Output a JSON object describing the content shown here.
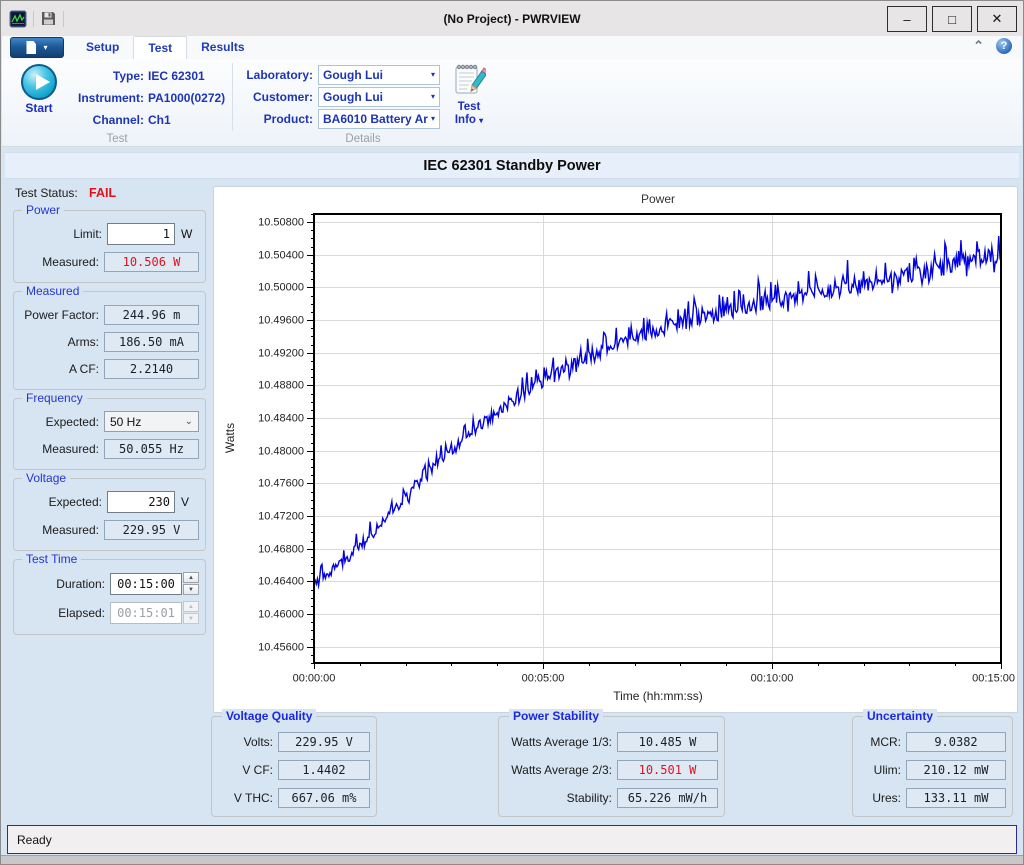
{
  "titlebar": {
    "title": "(No Project) - PWRVIEW"
  },
  "icons": {
    "minimize": "–",
    "maximize": "□",
    "close": "✕",
    "caret_down": "▾",
    "select_chevron": "⌄",
    "spin_up": "▲",
    "spin_down": "▼",
    "chevron_up": "⌃",
    "help": "?"
  },
  "ribbon": {
    "tabs": [
      {
        "label": "Setup",
        "active": false
      },
      {
        "label": "Test",
        "active": true
      },
      {
        "label": "Results",
        "active": false
      }
    ],
    "test_group": {
      "caption": "Test",
      "start_label": "Start",
      "fields": [
        {
          "label": "Type:",
          "value": "IEC 62301"
        },
        {
          "label": "Instrument:",
          "value": "PA1000(0272)"
        },
        {
          "label": "Channel:",
          "value": "Ch1"
        }
      ]
    },
    "details_group": {
      "caption": "Details",
      "combos": [
        {
          "label": "Laboratory:",
          "value": "Gough Lui"
        },
        {
          "label": "Customer:",
          "value": "Gough Lui"
        },
        {
          "label": "Product:",
          "value": "BA6010 Battery Ar"
        }
      ],
      "test_info_line1": "Test",
      "test_info_line2": "Info"
    }
  },
  "header": {
    "title": "IEC 62301 Standby Power"
  },
  "sidebar": {
    "test_status_label": "Test Status:",
    "test_status_value": "FAIL",
    "groups": [
      {
        "title": "Power",
        "rows": [
          {
            "label": "Limit:",
            "value": "1",
            "unit": "W",
            "type": "input"
          },
          {
            "label": "Measured:",
            "value": "10.506 W",
            "type": "readout",
            "alert": true
          }
        ]
      },
      {
        "title": "Measured",
        "rows": [
          {
            "label": "Power Factor:",
            "value": "244.96 m",
            "type": "readout"
          },
          {
            "label": "Arms:",
            "value": "186.50 mA",
            "type": "readout"
          },
          {
            "label": "A CF:",
            "value": "2.2140",
            "type": "readout"
          }
        ]
      },
      {
        "title": "Frequency",
        "rows": [
          {
            "label": "Expected:",
            "value": "50 Hz",
            "type": "select"
          },
          {
            "label": "Measured:",
            "value": "50.055 Hz",
            "type": "readout"
          }
        ]
      },
      {
        "title": "Voltage",
        "rows": [
          {
            "label": "Expected:",
            "value": "230",
            "unit": "V",
            "type": "input"
          },
          {
            "label": "Measured:",
            "value": "229.95 V",
            "type": "readout"
          }
        ]
      },
      {
        "title": "Test Time",
        "rows": [
          {
            "label": "Duration:",
            "value": "00:15:00",
            "type": "spinner"
          },
          {
            "label": "Elapsed:",
            "value": "00:15:01",
            "type": "spinner",
            "disabled": true
          }
        ]
      }
    ]
  },
  "chart_data": {
    "type": "line",
    "title": "Power",
    "xlabel": "Time (hh:mm:ss)",
    "ylabel": "Watts",
    "line_color": "#0202dd",
    "grid_color": "#d9d9d9",
    "xlim_s": [
      0,
      900
    ],
    "ylim": [
      10.454,
      10.509
    ],
    "y_tick_start": 10.456,
    "y_tick_step": 0.004,
    "y_tick_count": 14,
    "y_minor_step": 0.001,
    "y_decimals": 5,
    "x_ticks": [
      {
        "t": 0,
        "label": "00:00:00"
      },
      {
        "t": 300,
        "label": "00:05:00"
      },
      {
        "t": 600,
        "label": "00:10:00"
      },
      {
        "t": 900,
        "label": "00:15:00"
      }
    ],
    "x_minor_step_s": 60,
    "sample_interval_s": 1.5,
    "noise_amp": 0.00085,
    "spike_amp": 0.0022,
    "seed": 11,
    "trend": [
      [
        0,
        10.4636
      ],
      [
        20,
        10.465
      ],
      [
        40,
        10.4665
      ],
      [
        60,
        10.4683
      ],
      [
        90,
        10.4712
      ],
      [
        120,
        10.4742
      ],
      [
        150,
        10.4772
      ],
      [
        180,
        10.48
      ],
      [
        210,
        10.4826
      ],
      [
        240,
        10.4848
      ],
      [
        270,
        10.4866
      ],
      [
        300,
        10.4884
      ],
      [
        330,
        10.49
      ],
      [
        360,
        10.4914
      ],
      [
        390,
        10.4926
      ],
      [
        420,
        10.4938
      ],
      [
        450,
        10.4948
      ],
      [
        480,
        10.4956
      ],
      [
        510,
        10.4963
      ],
      [
        540,
        10.497
      ],
      [
        570,
        10.4976
      ],
      [
        600,
        10.4982
      ],
      [
        660,
        10.4993
      ],
      [
        720,
        10.5003
      ],
      [
        780,
        10.5014
      ],
      [
        840,
        10.5028
      ],
      [
        900,
        10.5044
      ]
    ]
  },
  "bottom_panels": [
    {
      "title": "Voltage Quality",
      "rows": [
        {
          "label": "Volts:",
          "value": "229.95 V"
        },
        {
          "label": "V CF:",
          "value": "1.4402"
        },
        {
          "label": "V THC:",
          "value": "667.06 m%"
        }
      ]
    },
    {
      "title": "Power Stability",
      "rows": [
        {
          "label": "Watts Average 1/3:",
          "value": "10.485 W"
        },
        {
          "label": "Watts Average 2/3:",
          "value": "10.501 W",
          "alert": true
        },
        {
          "label": "Stability:",
          "value": "65.226 mW/h"
        }
      ]
    },
    {
      "title": "Uncertainty",
      "rows": [
        {
          "label": "MCR:",
          "value": "9.0382"
        },
        {
          "label": "Ulim:",
          "value": "210.12 mW"
        },
        {
          "label": "Ures:",
          "value": "133.11 mW"
        }
      ]
    }
  ],
  "statusbar": {
    "text": "Ready"
  }
}
